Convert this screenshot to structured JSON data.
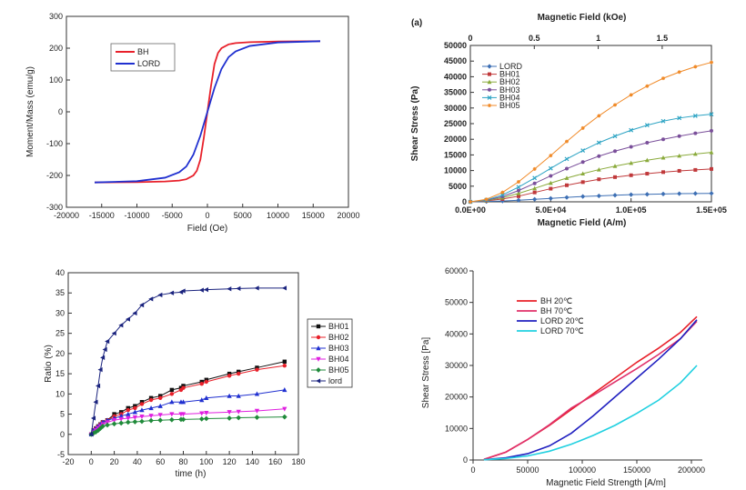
{
  "chart_data": [
    {
      "type": "line",
      "xlabel": "Field (Oe)",
      "ylabel": "Moment/Mass (emu/g)",
      "xlim": [
        -20000,
        20000
      ],
      "ylim": [
        -300,
        300
      ],
      "xticks": [
        -20000,
        -15000,
        -10000,
        -5000,
        0,
        5000,
        10000,
        15000,
        20000
      ],
      "yticks": [
        -300,
        -200,
        -100,
        0,
        100,
        200,
        300
      ],
      "legend": "top-left",
      "series": [
        {
          "name": "BH",
          "color": "#e8202a",
          "x": [
            -16000,
            -10000,
            -6000,
            -4000,
            -3000,
            -2000,
            -1500,
            -1000,
            -500,
            0,
            500,
            1000,
            1500,
            2000,
            3000,
            4000,
            6000,
            10000,
            16000
          ],
          "y": [
            -222,
            -221,
            -219,
            -216,
            -212,
            -200,
            -185,
            -150,
            -80,
            0,
            80,
            150,
            185,
            200,
            212,
            216,
            219,
            221,
            222
          ]
        },
        {
          "name": "LORD",
          "color": "#2030d0",
          "x": [
            -16000,
            -10000,
            -6000,
            -4000,
            -3000,
            -2000,
            -1000,
            0,
            1000,
            2000,
            3000,
            4000,
            6000,
            10000,
            16000
          ],
          "y": [
            -222,
            -218,
            -207,
            -190,
            -172,
            -135,
            -75,
            0,
            75,
            135,
            172,
            190,
            207,
            218,
            222
          ]
        }
      ]
    },
    {
      "type": "line",
      "panel_label": "(a)",
      "xlabel": "Magnetic Field (A/m)",
      "x2label": "Magnetic Field (kOe)",
      "ylabel": "Shear Stress (Pa)",
      "xlim": [
        0,
        150000
      ],
      "ylim": [
        0,
        50000
      ],
      "xtick_labels": [
        "0.0E+00",
        "5.0E+04",
        "1.0E+05",
        "1.5E+05"
      ],
      "xticks": [
        0,
        50000,
        100000,
        150000
      ],
      "x2tick_labels": [
        "0",
        "0.5",
        "1",
        "1.5"
      ],
      "x2ticks_am": [
        0,
        39789,
        79577,
        119366
      ],
      "yticks": [
        0,
        5000,
        10000,
        15000,
        20000,
        25000,
        30000,
        35000,
        40000,
        45000,
        50000
      ],
      "legend": "top-left",
      "x": [
        0,
        10000,
        20000,
        30000,
        40000,
        50000,
        60000,
        70000,
        80000,
        90000,
        100000,
        110000,
        120000,
        130000,
        140000,
        150000
      ],
      "series": [
        {
          "name": "LORD",
          "color": "#3d6fb4",
          "marker": "diamond",
          "values": [
            0,
            100,
            250,
            500,
            800,
            1100,
            1400,
            1700,
            1900,
            2100,
            2300,
            2400,
            2500,
            2600,
            2650,
            2700
          ]
        },
        {
          "name": "BH01",
          "color": "#c0393b",
          "marker": "square",
          "values": [
            0,
            300,
            900,
            1800,
            3000,
            4200,
            5300,
            6300,
            7200,
            7900,
            8500,
            9000,
            9500,
            9900,
            10200,
            10500
          ]
        },
        {
          "name": "BH02",
          "color": "#8aaa3b",
          "marker": "triangle",
          "values": [
            0,
            400,
            1300,
            2700,
            4300,
            6000,
            7600,
            9000,
            10300,
            11400,
            12400,
            13300,
            14100,
            14700,
            15300,
            15800
          ]
        },
        {
          "name": "BH03",
          "color": "#7a4f9a",
          "marker": "circle",
          "values": [
            0,
            500,
            1700,
            3600,
            5900,
            8300,
            10600,
            12700,
            14600,
            16200,
            17600,
            18900,
            20000,
            21000,
            21900,
            22700
          ]
        },
        {
          "name": "BH04",
          "color": "#2ea4c4",
          "marker": "x",
          "values": [
            0,
            600,
            2200,
            4700,
            7600,
            10700,
            13700,
            16400,
            18900,
            21000,
            22900,
            24500,
            25800,
            26800,
            27500,
            28000
          ]
        },
        {
          "name": "BH05",
          "color": "#f08a28",
          "marker": "star",
          "values": [
            0,
            800,
            3000,
            6400,
            10500,
            14800,
            19300,
            23600,
            27500,
            31000,
            34200,
            37000,
            39500,
            41500,
            43200,
            44600
          ]
        }
      ]
    },
    {
      "type": "line",
      "xlabel": "time (h)",
      "ylabel": "Ratio (%)",
      "xlim": [
        -20,
        180
      ],
      "ylim": [
        -5,
        40
      ],
      "xticks": [
        -20,
        0,
        20,
        40,
        60,
        80,
        100,
        120,
        140,
        160,
        180
      ],
      "yticks": [
        -5,
        0,
        5,
        10,
        15,
        20,
        25,
        30,
        35,
        40
      ],
      "legend": "right",
      "series": [
        {
          "name": "BH01",
          "color": "#111111",
          "marker": "square",
          "x": [
            0,
            2,
            4,
            6,
            8,
            10,
            14,
            20,
            26,
            32,
            38,
            44,
            52,
            60,
            70,
            78,
            80,
            96,
            100,
            120,
            128,
            144,
            168
          ],
          "y": [
            0,
            1,
            1.5,
            2,
            2.5,
            3,
            3.5,
            5,
            5.5,
            6.5,
            7,
            8,
            9,
            9.5,
            11,
            11.5,
            12,
            13,
            13.5,
            15,
            15.5,
            16.5,
            18
          ]
        },
        {
          "name": "BH02",
          "color": "#e8202a",
          "marker": "circle",
          "x": [
            0,
            2,
            4,
            6,
            8,
            10,
            14,
            20,
            26,
            32,
            38,
            44,
            52,
            60,
            70,
            78,
            80,
            96,
            100,
            120,
            128,
            144,
            168
          ],
          "y": [
            0,
            1,
            1.5,
            2,
            2.5,
            3,
            3.5,
            4.5,
            5,
            6,
            6.5,
            7.5,
            8.5,
            9,
            10,
            11,
            11.5,
            12.5,
            13,
            14.5,
            15,
            16,
            17
          ]
        },
        {
          "name": "BH03",
          "color": "#2030d0",
          "marker": "triangle",
          "x": [
            0,
            2,
            4,
            6,
            8,
            10,
            14,
            20,
            26,
            32,
            38,
            44,
            52,
            60,
            70,
            78,
            80,
            96,
            100,
            120,
            128,
            144,
            168
          ],
          "y": [
            0,
            1,
            1.5,
            2,
            2.5,
            3,
            3.5,
            4,
            4.5,
            5,
            5.5,
            6,
            6.5,
            7,
            8,
            8,
            8,
            8.5,
            9,
            9.5,
            9.5,
            10,
            11
          ]
        },
        {
          "name": "BH04",
          "color": "#e020e0",
          "marker": "triangle-down",
          "x": [
            0,
            2,
            4,
            6,
            8,
            10,
            14,
            20,
            26,
            32,
            38,
            44,
            52,
            60,
            70,
            78,
            80,
            96,
            100,
            120,
            128,
            144,
            168
          ],
          "y": [
            0,
            0.5,
            1,
            1.5,
            2,
            2.5,
            3,
            3.5,
            3.8,
            4,
            4.2,
            4.4,
            4.6,
            4.8,
            5,
            5,
            5,
            5.2,
            5.3,
            5.5,
            5.6,
            5.8,
            6.3
          ]
        },
        {
          "name": "BH05",
          "color": "#1f8a3a",
          "marker": "diamond",
          "x": [
            0,
            2,
            4,
            6,
            8,
            10,
            14,
            20,
            26,
            32,
            38,
            44,
            52,
            60,
            70,
            78,
            80,
            96,
            100,
            120,
            128,
            144,
            168
          ],
          "y": [
            0,
            0.3,
            0.6,
            1,
            1.5,
            2,
            2.3,
            2.6,
            2.8,
            3,
            3.1,
            3.2,
            3.4,
            3.5,
            3.6,
            3.7,
            3.7,
            3.8,
            3.9,
            4,
            4.1,
            4.2,
            4.3
          ]
        },
        {
          "name": "lord",
          "color": "#1a237e",
          "marker": "triangle-left",
          "x": [
            0,
            2,
            4,
            6,
            8,
            10,
            12,
            14,
            20,
            26,
            32,
            38,
            44,
            52,
            60,
            70,
            78,
            80,
            96,
            100,
            120,
            128,
            144,
            168
          ],
          "y": [
            0,
            4,
            8,
            12,
            16,
            19,
            21,
            23,
            25,
            27,
            28.5,
            30,
            32,
            33.5,
            34.5,
            35,
            35.2,
            35.5,
            35.7,
            35.8,
            36,
            36.1,
            36.2,
            36.2
          ]
        }
      ]
    },
    {
      "type": "line",
      "xlabel": "Magnetic Field Strength [A/m]",
      "ylabel": "Shear Stress [Pa]",
      "xlim": [
        0,
        210000
      ],
      "ylim": [
        0,
        60000
      ],
      "xticks": [
        0,
        50000,
        100000,
        150000,
        200000
      ],
      "yticks": [
        0,
        10000,
        20000,
        30000,
        40000,
        50000,
        60000
      ],
      "legend": "top-left",
      "series": [
        {
          "name": "BH 20℃",
          "color": "#e8202a",
          "x": [
            10000,
            30000,
            50000,
            70000,
            90000,
            110000,
            130000,
            150000,
            170000,
            190000,
            205000
          ],
          "y": [
            200,
            2500,
            6500,
            11000,
            16000,
            21000,
            26000,
            31000,
            35500,
            40500,
            45500
          ]
        },
        {
          "name": "BH 70℃",
          "color": "#e0306a",
          "x": [
            10000,
            30000,
            50000,
            70000,
            90000,
            110000,
            130000,
            150000,
            170000,
            190000,
            205000
          ],
          "y": [
            200,
            2500,
            6500,
            11200,
            16500,
            20500,
            24800,
            29000,
            33500,
            38500,
            44000
          ]
        },
        {
          "name": "LORD 20℃",
          "color": "#2020c0",
          "x": [
            10000,
            30000,
            50000,
            70000,
            90000,
            110000,
            130000,
            150000,
            170000,
            190000,
            205000
          ],
          "y": [
            100,
            700,
            2000,
            4500,
            8500,
            14000,
            20000,
            26000,
            32000,
            38500,
            44500
          ]
        },
        {
          "name": "LORD 70℃",
          "color": "#20d0e0",
          "x": [
            10000,
            30000,
            50000,
            70000,
            90000,
            110000,
            130000,
            150000,
            170000,
            190000,
            205000
          ],
          "y": [
            100,
            500,
            1300,
            2800,
            5000,
            7800,
            11000,
            14800,
            19000,
            24500,
            30000
          ]
        }
      ]
    }
  ]
}
